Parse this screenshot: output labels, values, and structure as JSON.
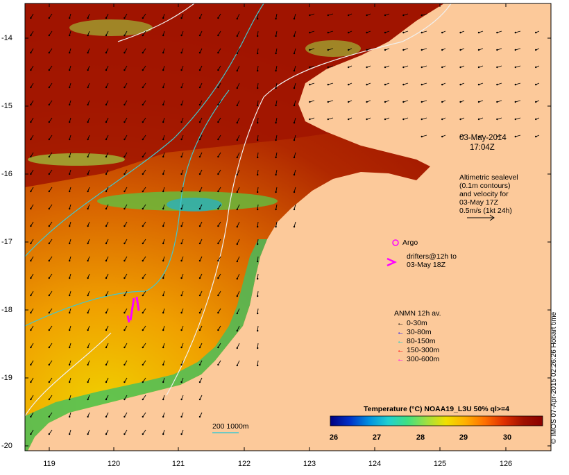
{
  "map": {
    "timestamp_date": "03-May-2014",
    "timestamp_time": "17:04Z",
    "altimetry_lines": [
      "Altimetric sealevel",
      "(0.1m contours)",
      "and velocity for",
      "03-May 17Z",
      "0.5m/s (1kt 24h)"
    ],
    "argo_label": "Argo",
    "drifter_lines": [
      "drifters@12h to",
      "03-May 18Z"
    ],
    "bathymetry_label": "200  1000m",
    "credit": "© IMOS 07-Apr-2015 02:26:26 Hobart time",
    "x_ticks": [
      "119",
      "120",
      "121",
      "122",
      "123",
      "124",
      "125",
      "126"
    ],
    "y_ticks": [
      "-14",
      "-15",
      "-16",
      "-17",
      "-18",
      "-19",
      "-20"
    ],
    "lon_range": [
      118.6,
      126.7
    ],
    "lat_range": [
      -20.1,
      -13.55
    ]
  },
  "legend": {
    "title": "ANMN 12h av.",
    "items": [
      {
        "label": "0-30m",
        "color": "#000000",
        "icon": "arrow-left-icon"
      },
      {
        "label": "30-80m",
        "color": "#0000ff",
        "icon": "arrow-left-icon"
      },
      {
        "label": "80-150m",
        "color": "#00d0d0",
        "icon": "arrow-left-icon"
      },
      {
        "label": "150-300m",
        "color": "#ff0000",
        "icon": "arrow-left-icon"
      },
      {
        "label": "300-600m",
        "color": "#ff00ff",
        "icon": "arrow-left-icon"
      }
    ]
  },
  "colorbar": {
    "title": "Temperature (°C) NOAA19_L3U 50% ql>=4",
    "ticks": [
      "26",
      "27",
      "28",
      "29",
      "30"
    ],
    "range": [
      25.7,
      30.6
    ],
    "colors": [
      "#000080",
      "#0030c8",
      "#0090e0",
      "#20d0d0",
      "#40e080",
      "#a0e040",
      "#f0e000",
      "#ffb000",
      "#ff7000",
      "#e03000",
      "#a01000",
      "#8b0000"
    ]
  },
  "colors": {
    "land": "#fcc99a",
    "sea_warm": "#a01800",
    "sea_mid": "#d86400",
    "contour_cyan": "#40c8d0",
    "contour_white": "#f0f0f0",
    "argo": "#ff00ff"
  }
}
